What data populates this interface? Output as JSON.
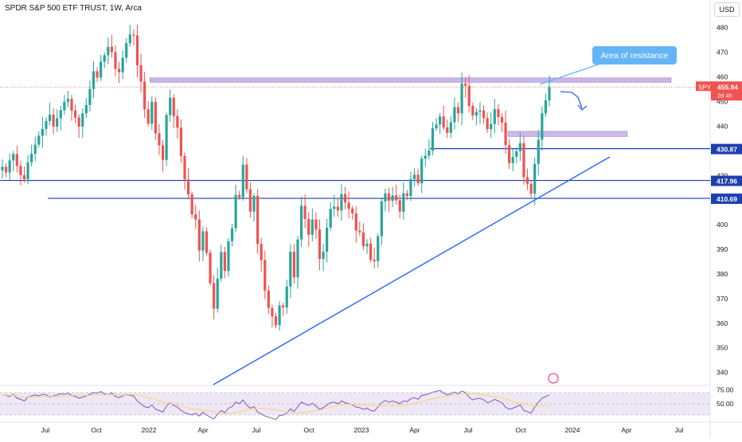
{
  "header": {
    "title": "SPDR S&P 500 ETF TRUST, 1W, Arca",
    "currency_label": "USD"
  },
  "colors": {
    "up": "#26a69a",
    "down": "#ef5350",
    "support_line": "#1e3fb0",
    "trendline": "#2962ff",
    "zone_fill": "#b39ddb",
    "callout": "#64b5f6",
    "rsi_line": "#7e57c2",
    "rsi_ma": "#f5d76e",
    "rsi_band": "#ede7f6"
  },
  "chart_data": [
    {
      "type": "candlestick",
      "title": "SPDR S&P 500 ETF TRUST, 1W, Arca",
      "ylim": [
        336,
        488
      ],
      "y_ticks": [
        340,
        350,
        360,
        370,
        380,
        390,
        400,
        410,
        420,
        430,
        440,
        450,
        460,
        470,
        480
      ],
      "x_labels": [
        "Jul",
        "Oct",
        "2022",
        "Apr",
        "Jul",
        "Oct",
        "2023",
        "Apr",
        "Jul",
        "Oct",
        "2024",
        "Apr",
        "Jul"
      ],
      "closes": [
        423.5,
        421.2,
        426.1,
        428.7,
        423.9,
        420.1,
        418.4,
        425.3,
        428.8,
        432.5,
        436.1,
        438.9,
        442.1,
        444.7,
        439.8,
        443.2,
        446.5,
        449.9,
        451.1,
        446.3,
        443.5,
        439.8,
        445.2,
        448.6,
        455.1,
        462.3,
        459.7,
        466.2,
        468.8,
        472.2,
        470.1,
        463.3,
        461.9,
        467.8,
        473.7,
        477.2,
        476.8,
        464.7,
        458.1,
        446.9,
        441.0,
        449.9,
        437.1,
        432.2,
        426.3,
        444.5,
        451.6,
        444.1,
        439.4,
        427.9,
        418.4,
        412.3,
        404.2,
        402.1,
        389.5,
        397.3,
        388.6,
        376.3,
        365.9,
        378.1,
        388.9,
        381.2,
        393.3,
        398.5,
        412.1,
        411.1,
        424.4,
        414.3,
        405.3,
        411.7,
        392.2,
        385.6,
        373.3,
        366.2,
        362.8,
        359.2,
        367.2,
        366.4,
        374.9,
        389.0,
        378.6,
        394.0,
        407.7,
        402.3,
        395.9,
        402.1,
        398.0,
        386.1,
        389.0,
        398.8,
        406.4,
        407.3,
        405.8,
        412.4,
        409.0,
        406.5,
        404.6,
        397.6,
        396.9,
        391.2,
        392.3,
        385.8,
        385.2,
        395.3,
        409.4,
        412.7,
        409.7,
        411.9,
        409.9,
        405.3,
        412.7,
        411.6,
        418.5,
        420.3,
        416.8,
        426.8,
        428.0,
        430.1,
        439.1,
        440.7,
        443.9,
        439.5,
        437.3,
        441.6,
        447.7,
        445.2,
        457.3,
        456.4,
        448.2,
        444.3,
        445.8,
        446.4,
        443.3,
        438.8,
        440.9,
        446.9,
        443.7,
        441.4,
        432.3,
        425.0,
        427.5,
        429.8,
        433.1,
        419.3,
        416.6,
        412.6,
        424.7,
        434.5,
        445.2,
        450.5,
        455.9
      ],
      "last_price": "455.94",
      "symbol_badge": "SPY",
      "countdown": "2d 4h",
      "level_labels": [
        "430.87",
        "417.96",
        "410.69"
      ],
      "levels": [
        430.87,
        417.96,
        410.69
      ],
      "zones": [
        {
          "from": 457.8,
          "to": 459.6
        },
        {
          "from": 435.8,
          "to": 437.9
        }
      ],
      "trendline": {
        "from": [
          336,
          "2022-08"
        ],
        "to": [
          430.5,
          "2024-02"
        ]
      },
      "annotations": [
        "Area of resistance"
      ]
    },
    {
      "type": "line",
      "title": "",
      "y_ticks": [
        "75.00",
        "50.00"
      ],
      "ylim": [
        20,
        80
      ],
      "series": [
        {
          "values": [
            66,
            65,
            63,
            67,
            60,
            58,
            55,
            62,
            64,
            66,
            64,
            67,
            66,
            62,
            64,
            66,
            68,
            67,
            69,
            65,
            63,
            60,
            62,
            64,
            67,
            70,
            69,
            72,
            68,
            66,
            70,
            63,
            61,
            64,
            67,
            65,
            64,
            55,
            50,
            45,
            43,
            48,
            40,
            38,
            35,
            46,
            52,
            47,
            44,
            38,
            34,
            32,
            30,
            33,
            28,
            35,
            30,
            26,
            23,
            31,
            38,
            34,
            42,
            45,
            53,
            50,
            57,
            48,
            42,
            45,
            35,
            32,
            28,
            26,
            24,
            22,
            29,
            30,
            33,
            41,
            36,
            45,
            53,
            50,
            47,
            51,
            46,
            40,
            43,
            48,
            52,
            53,
            50,
            55,
            52,
            50,
            48,
            44,
            43,
            40,
            42,
            38,
            37,
            44,
            52,
            56,
            53,
            55,
            53,
            50,
            55,
            54,
            59,
            61,
            58,
            65,
            66,
            68,
            71,
            72,
            74,
            69,
            66,
            68,
            71,
            68,
            73,
            70,
            62,
            57,
            59,
            60,
            57,
            52,
            54,
            58,
            55,
            52,
            44,
            40,
            42,
            45,
            48,
            38,
            36,
            33,
            44,
            53,
            60,
            63,
            66
          ]
        }
      ]
    }
  ]
}
